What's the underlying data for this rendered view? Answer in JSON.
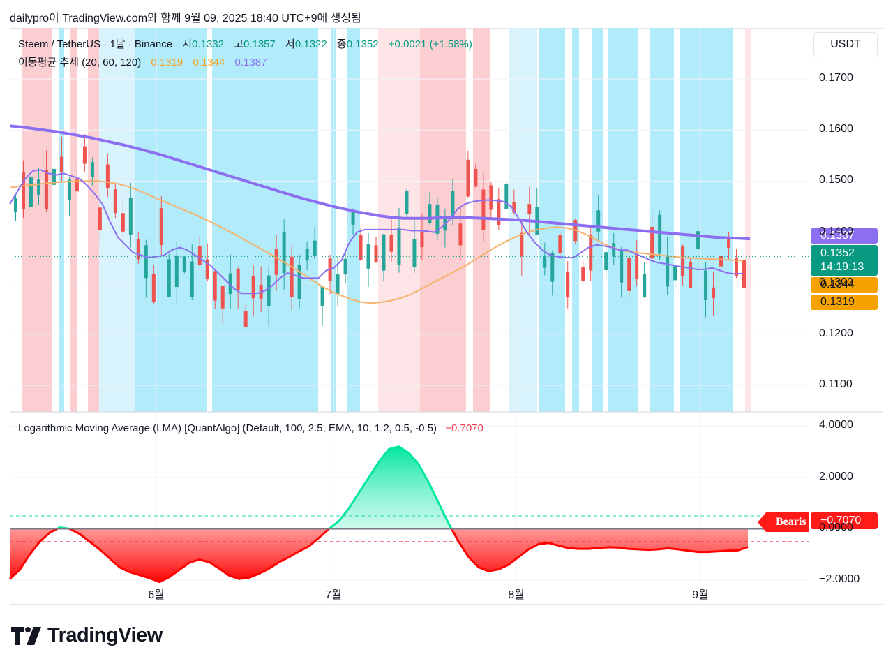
{
  "header": {
    "caption": "dailypro이 TradingView.com와 함께 9월 09, 2025 18:40 UTC+9에 생성됨"
  },
  "symbol": {
    "name": "Steem / TetherUS · 1날 · Binance",
    "open_label": "시",
    "open": "0.1332",
    "high_label": "고",
    "high": "0.1357",
    "low_label": "저",
    "low": "0.1322",
    "close_label": "종",
    "close": "0.1352",
    "change": "+0.0021 (+1.58%)"
  },
  "ma_legend": {
    "label": "이동평균 추세 (20, 60, 120)",
    "v20": "0.1319",
    "v60": "0.1344",
    "v120": "0.1387"
  },
  "lma_legend": {
    "label": "Logarithmic Moving Average (LMA) [QuantAlgo] (Default, 100, 2.5, EMA, 10, 1.2, 0.5, -0.5)",
    "value": "−0.7070"
  },
  "currency": "USDT",
  "price_tags": {
    "ma120": "0.1387",
    "last": "0.1352",
    "countdown": "14:19:13",
    "ma60": "0.1344",
    "ma20": "0.1319"
  },
  "lma_tags": {
    "signal": "Bearis",
    "value": "−0.7070"
  },
  "colors": {
    "up": "#26a69a",
    "down": "#ef5350",
    "ma20": "#f23645",
    "ma60": "#f7b26a",
    "ma120": "#8c6ef0",
    "bull_bg": "#b2ebf2",
    "bear_bg": "#ffcdd2",
    "lma_pos": "#00e6a0",
    "lma_neg": "#ff0000"
  },
  "chart_data": [
    {
      "type": "line",
      "title": "Steem / TetherUS · 1날 · Binance",
      "y_ticks": [
        "0.1700",
        "0.1600",
        "0.1500",
        "0.1400",
        "0.1300",
        "0.1200",
        "0.1100"
      ],
      "ylim": [
        0.1048,
        0.18
      ],
      "x_ticks": [
        "6월",
        "7월",
        "8월",
        "9월"
      ],
      "grid": true,
      "series": [
        {
          "name": "20",
          "values": [
            0.1455,
            0.148,
            0.1505,
            0.152,
            0.1522,
            0.1515,
            0.1512,
            0.1515,
            0.151,
            0.1505,
            0.1492,
            0.1475,
            0.1455,
            0.142,
            0.139,
            0.1375,
            0.136,
            0.1355,
            0.135,
            0.1352,
            0.1355,
            0.1365,
            0.137,
            0.1365,
            0.1355,
            0.1345,
            0.1335,
            0.132,
            0.1305,
            0.129,
            0.128,
            0.128,
            0.128,
            0.1285,
            0.1295,
            0.131,
            0.132,
            0.1315,
            0.131,
            0.131,
            0.131,
            0.1325,
            0.133,
            0.1345,
            0.138,
            0.14,
            0.1405,
            0.1405,
            0.1405,
            0.1405,
            0.1405,
            0.1405,
            0.1403,
            0.1403,
            0.1402,
            0.14,
            0.141,
            0.1425,
            0.1445,
            0.1455,
            0.146,
            0.1462,
            0.1463,
            0.1462,
            0.146,
            0.145,
            0.1425,
            0.14,
            0.138,
            0.1365,
            0.1355,
            0.1352,
            0.135,
            0.135,
            0.136,
            0.137,
            0.1375,
            0.1373,
            0.137,
            0.1365,
            0.1365,
            0.1358,
            0.1352,
            0.1345,
            0.134,
            0.1338,
            0.1335,
            0.1332,
            0.133,
            0.1327,
            0.1327,
            0.133,
            0.1325,
            0.132,
            0.1318,
            0.1319
          ]
        },
        {
          "name": "60",
          "values": [
            0.1487,
            0.149,
            0.1492,
            0.1494,
            0.1496,
            0.1498,
            0.1499,
            0.15,
            0.15,
            0.15,
            0.1498,
            0.1495,
            0.149,
            0.1483,
            0.1475,
            0.1466,
            0.1458,
            0.145,
            0.1442,
            0.1434,
            0.1425,
            0.1416,
            0.1406,
            0.1396,
            0.1385,
            0.1375,
            0.1364,
            0.1353,
            0.1342,
            0.133,
            0.1318,
            0.1305,
            0.1293,
            0.1283,
            0.1275,
            0.1268,
            0.1263,
            0.1261,
            0.1263,
            0.1266,
            0.1271,
            0.1278,
            0.1288,
            0.1298,
            0.1308,
            0.1318,
            0.1328,
            0.1339,
            0.1351,
            0.1363,
            0.1374,
            0.1384,
            0.1393,
            0.14,
            0.1405,
            0.1408,
            0.141,
            0.1408,
            0.1403,
            0.1395,
            0.1385,
            0.1375,
            0.1368,
            0.1363,
            0.136,
            0.1358,
            0.1356,
            0.1354,
            0.1352,
            0.135,
            0.1349,
            0.1348,
            0.1347,
            0.1346,
            0.1345,
            0.1344
          ]
        },
        {
          "name": "120",
          "values": [
            0.1608,
            0.1606,
            0.1603,
            0.16,
            0.1597,
            0.1593,
            0.1589,
            0.1585,
            0.158,
            0.1575,
            0.157,
            0.1564,
            0.1558,
            0.1552,
            0.1545,
            0.1538,
            0.1531,
            0.1524,
            0.1517,
            0.151,
            0.1503,
            0.1496,
            0.1489,
            0.1482,
            0.1475,
            0.1468,
            0.1462,
            0.1456,
            0.145,
            0.1445,
            0.144,
            0.1436,
            0.1432,
            0.1429,
            0.1427,
            0.1427,
            0.1427,
            0.1428,
            0.1429,
            0.1429,
            0.1428,
            0.1427,
            0.1426,
            0.1425,
            0.1424,
            0.1422,
            0.142,
            0.1418,
            0.1416,
            0.1414,
            0.1412,
            0.141,
            0.1408,
            0.1406,
            0.1404,
            0.1402,
            0.14,
            0.1398,
            0.1396,
            0.1394,
            0.1392,
            0.139,
            0.1389,
            0.1388,
            0.1387
          ]
        }
      ]
    },
    {
      "type": "area",
      "title": "Logarithmic Moving Average (LMA) [QuantAlgo] (Default, 100, 2.5, EMA, 10, 1.2, 0.5, -0.5)",
      "y_ticks": [
        "4.0000",
        "2.0000",
        "0.0000",
        "−2.0000"
      ],
      "ylim": [
        -2.95,
        4.55
      ],
      "x_ticks": [
        "6월",
        "7월",
        "8월",
        "9월"
      ],
      "thresholds": [
        0.5,
        -0.5
      ],
      "series": [
        {
          "name": "LMA",
          "values": [
            -1.95,
            -1.6,
            -1.0,
            -0.5,
            -0.15,
            0.05,
            0.0,
            -0.2,
            -0.5,
            -0.8,
            -1.15,
            -1.5,
            -1.68,
            -1.8,
            -1.92,
            -2.07,
            -1.88,
            -1.6,
            -1.32,
            -1.2,
            -1.3,
            -1.55,
            -1.82,
            -1.95,
            -1.9,
            -1.75,
            -1.55,
            -1.3,
            -1.1,
            -0.88,
            -0.68,
            -0.35,
            0.0,
            0.3,
            0.8,
            1.4,
            2.0,
            2.6,
            3.1,
            3.2,
            2.95,
            2.5,
            1.8,
            1.0,
            0.2,
            -0.5,
            -1.1,
            -1.5,
            -1.65,
            -1.58,
            -1.4,
            -1.1,
            -0.8,
            -0.6,
            -0.55,
            -0.65,
            -0.75,
            -0.78,
            -0.78,
            -0.75,
            -0.72,
            -0.73,
            -0.78,
            -0.8,
            -0.82,
            -0.8,
            -0.76,
            -0.8,
            -0.85,
            -0.9,
            -0.9,
            -0.88,
            -0.85,
            -0.84,
            -0.707
          ]
        }
      ]
    }
  ]
}
